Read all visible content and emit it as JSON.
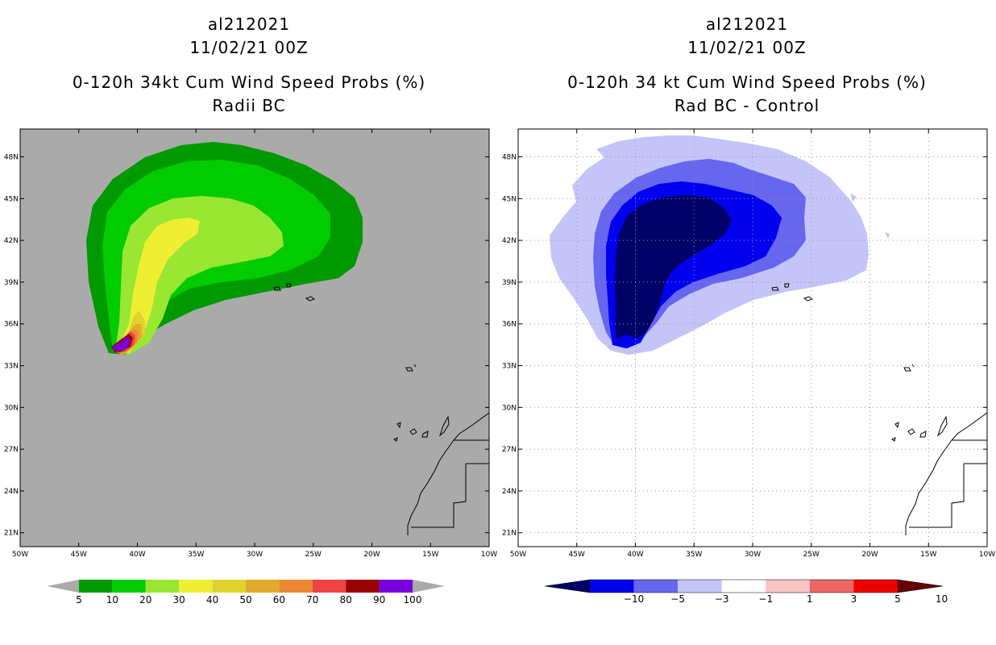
{
  "panels": [
    {
      "title_lines": [
        "al212021",
        "11/02/21 00Z",
        "0-120h 34kt Cum Wind Speed Probs (%)",
        "Radii BC"
      ]
    },
    {
      "title_lines": [
        "al212021",
        "11/02/21 00Z",
        "0-120h 34 kt Cum Wind Speed Probs (%)",
        "Rad BC - Control"
      ]
    }
  ],
  "chart_data": [
    {
      "type": "heatmap",
      "title": "0-120h 34kt Cum Wind Speed Probs (%)",
      "subtitle": "Radii BC",
      "xlim": [
        -50,
        -10
      ],
      "ylim": [
        20,
        50
      ],
      "x_ticks": [
        -50,
        -45,
        -40,
        -35,
        -30,
        -25,
        -20,
        -15,
        -10
      ],
      "x_tick_labels": [
        "50W",
        "45W",
        "40W",
        "35W",
        "30W",
        "25W",
        "20W",
        "15W",
        "10W"
      ],
      "y_ticks": [
        21,
        24,
        27,
        30,
        33,
        36,
        39,
        42,
        45,
        48
      ],
      "y_tick_labels": [
        "21N",
        "24N",
        "27N",
        "30N",
        "33N",
        "36N",
        "39N",
        "42N",
        "45N",
        "48N"
      ],
      "background": "#aaaaaa",
      "levels": [
        5,
        10,
        20,
        30,
        40,
        50,
        60,
        70,
        80,
        90,
        100
      ],
      "level_labels": [
        "5",
        "10",
        "20",
        "30",
        "40",
        "50",
        "60",
        "70",
        "80",
        "90",
        "100"
      ],
      "colors": [
        "#009900",
        "#00cc00",
        "#99e633",
        "#eeee33",
        "#e0d22e",
        "#e0aa2e",
        "#ee8833",
        "#ee4444",
        "#990000",
        "#7700dd"
      ],
      "grid": false
    },
    {
      "type": "heatmap",
      "title": "0-120h 34 kt Cum Wind Speed Probs (%)",
      "subtitle": "Rad BC - Control",
      "xlim": [
        -50,
        -10
      ],
      "ylim": [
        20,
        50
      ],
      "x_ticks": [
        -50,
        -45,
        -40,
        -35,
        -30,
        -25,
        -20,
        -15,
        -10
      ],
      "x_tick_labels": [
        "50W",
        "45W",
        "40W",
        "35W",
        "30W",
        "25W",
        "20W",
        "15W",
        "10W"
      ],
      "y_ticks": [
        21,
        24,
        27,
        30,
        33,
        36,
        39,
        42,
        45,
        48
      ],
      "y_tick_labels": [
        "21N",
        "24N",
        "27N",
        "30N",
        "33N",
        "36N",
        "39N",
        "42N",
        "45N",
        "48N"
      ],
      "background": "#ffffff",
      "levels": [
        -10,
        -5,
        -3,
        -1,
        1,
        3,
        5,
        10
      ],
      "level_labels": [
        "-10",
        "-5",
        "-3",
        "-1",
        "1",
        "3",
        "5",
        "10"
      ],
      "colors": [
        "#000066",
        "#0000ee",
        "#6666ee",
        "#c4c4f8",
        "#ffffff",
        "#f8c4c4",
        "#ee6666",
        "#ee0000",
        "#660000"
      ],
      "grid": true
    }
  ]
}
